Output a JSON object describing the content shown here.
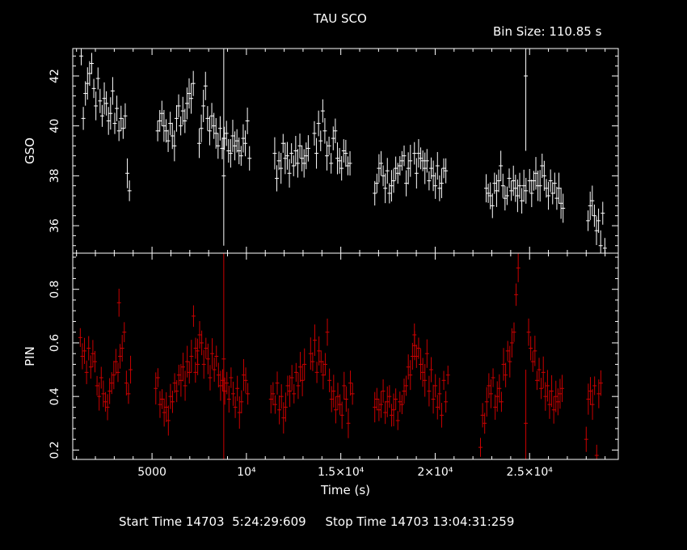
{
  "chart_data": {
    "type": "scatter",
    "title": "TAU SCO",
    "bin_label": "Bin Size: 110.85 s",
    "xlabel": "Time (s)",
    "xlim": [
      800,
      29700
    ],
    "x_ticks": [
      {
        "value": 5000,
        "label": "5000"
      },
      {
        "value": 10000,
        "label": "10⁴"
      },
      {
        "value": 15000,
        "label": "1.5×10⁴"
      },
      {
        "value": 20000,
        "label": "2×10⁴"
      },
      {
        "value": 25000,
        "label": "2.5×10⁴"
      }
    ],
    "footer": "Start Time 14703  5:24:29:609     Stop Time 14703 13:04:31:259",
    "panels": [
      {
        "name": "gso",
        "ylabel": "GSO",
        "ylim": [
          34.9,
          43.1
        ],
        "yticks": [
          36,
          38,
          40,
          42
        ],
        "color": "#ffffff",
        "segments": [
          {
            "x0": 1250,
            "dx": 111,
            "y": [
              42.8,
              40.3,
              41.3,
              41.7,
              42.1,
              42.5,
              41.5,
              40.8,
              41.9,
              41.0,
              40.4,
              41.1,
              40.9,
              40.2,
              40.5,
              41.4,
              40.1,
              40.7,
              39.8,
              40.3,
              39.9,
              40.4,
              38.1,
              37.4
            ]
          },
          {
            "x0": 5300,
            "dx": 111,
            "y": [
              39.8,
              40.2,
              40.5,
              40.0,
              39.8,
              39.4,
              40.1,
              39.6,
              39.2,
              40.3,
              40.8,
              40.0,
              40.6,
              40.2,
              40.9,
              41.3,
              41.1,
              41.7
            ]
          },
          {
            "x0": 7500,
            "dx": 111,
            "y": [
              39.3,
              39.9,
              40.8,
              41.6,
              40.3,
              39.8,
              40.4,
              40.0,
              39.7,
              39.2,
              39.9,
              39.1,
              39.5,
              39.7,
              39.0,
              38.9,
              39.6,
              39.2,
              39.4,
              39.0,
              38.8,
              39.5,
              39.3,
              40.2,
              38.7
            ]
          },
          {
            "x0": 11500,
            "dx": 111,
            "y": [
              38.9,
              37.9,
              38.6,
              38.3,
              39.3,
              38.7,
              38.8,
              38.1,
              38.9,
              38.4,
              39.0,
              38.5,
              39.2,
              38.7,
              38.5,
              38.8,
              39.1
            ]
          },
          {
            "x0": 13600,
            "dx": 111,
            "y": [
              39.7,
              38.9,
              40.1,
              39.4,
              40.6,
              39.8,
              38.8,
              39.2,
              38.5,
              39.5,
              39.8,
              38.7,
              38.6,
              38.3,
              39.0,
              38.9,
              38.4,
              38.5
            ]
          },
          {
            "x0": 16800,
            "dx": 111,
            "y": [
              37.3,
              37.7,
              38.3,
              38.5,
              38.0,
              37.5,
              38.2,
              37.3,
              37.6,
              37.8,
              38.3,
              38.1,
              38.4,
              38.6,
              38.8,
              37.7,
              38.3,
              38.6
            ]
          },
          {
            "x0": 18900,
            "dx": 111,
            "y": [
              38.9,
              38.1,
              38.9,
              38.7,
              38.6,
              38.3,
              38.6,
              37.8,
              38.3,
              38.0,
              37.6,
              38.4,
              37.5,
              37.7,
              38.3,
              38.2
            ]
          },
          {
            "x0": 22700,
            "dx": 111,
            "y": [
              37.5,
              37.3,
              37.2,
              36.8,
              37.7,
              37.4,
              37.8,
              38.4,
              37.6,
              37.1,
              37.2,
              37.9,
              37.4,
              37.8,
              37.5,
              37.2,
              37.6,
              37.0,
              37.6,
              37.4
            ]
          },
          {
            "x0": 25000,
            "dx": 111,
            "y": [
              37.8,
              37.3,
              37.8,
              38.1,
              37.6,
              37.6,
              38.4,
              38.0,
              37.5,
              37.2,
              37.8,
              37.3,
              37.7,
              37.1,
              37.5,
              36.9,
              36.7
            ]
          },
          {
            "x0": 28100,
            "dx": 111,
            "y": [
              36.2,
              36.8,
              37.0,
              36.4,
              35.8,
              36.2,
              35.2,
              36.5,
              35.1
            ]
          }
        ],
        "spikes": [
          {
            "x": 8800,
            "y": 38.0,
            "lo": 35.2,
            "hi": 43.1
          },
          {
            "x": 24800,
            "y": 42.0,
            "lo": 39.0,
            "hi": 43.1
          }
        ]
      },
      {
        "name": "pin",
        "ylabel": "PIN",
        "ylim": [
          0.165,
          0.935
        ],
        "yticks": [
          0.2,
          0.4,
          0.6,
          0.8
        ],
        "color": "#cc0000",
        "segments": [
          {
            "x0": 1200,
            "dx": 111,
            "y": [
              0.62,
              0.55,
              0.57,
              0.49,
              0.58,
              0.51,
              0.56,
              0.53,
              0.44,
              0.4,
              0.47,
              0.41,
              0.38,
              0.36,
              0.42,
              0.45,
              0.48,
              0.53,
              0.49,
              0.55,
              0.58,
              0.64,
              0.45,
              0.41,
              0.5
            ]
          },
          {
            "x0": 3250,
            "dx": 0,
            "y": [
              0.75
            ]
          },
          {
            "x0": 5200,
            "dx": 111,
            "y": [
              0.43,
              0.47,
              0.37,
              0.39,
              0.34,
              0.36,
              0.31,
              0.4,
              0.38,
              0.45,
              0.42,
              0.48,
              0.46,
              0.51,
              0.44,
              0.53,
              0.49,
              0.55,
              0.7,
              0.58,
              0.52
            ]
          },
          {
            "x0": 7300,
            "dx": 111,
            "y": [
              0.49,
              0.57,
              0.63,
              0.6,
              0.52,
              0.58,
              0.54,
              0.47,
              0.56,
              0.5,
              0.55,
              0.48,
              0.44,
              0.46,
              0.42,
              0.45,
              0.39,
              0.47,
              0.41,
              0.36,
              0.43,
              0.34,
              0.38,
              0.48,
              0.46,
              0.41
            ]
          },
          {
            "x0": 11300,
            "dx": 111,
            "y": [
              0.39,
              0.41,
              0.37,
              0.45,
              0.35,
              0.4,
              0.32,
              0.36,
              0.44,
              0.42,
              0.47,
              0.41,
              0.49,
              0.44,
              0.51,
              0.46,
              0.52
            ]
          },
          {
            "x0": 13400,
            "dx": 111,
            "y": [
              0.56,
              0.53,
              0.61,
              0.49,
              0.57,
              0.53,
              0.48,
              0.52,
              0.64,
              0.46,
              0.39,
              0.42,
              0.35,
              0.4,
              0.37,
              0.33,
              0.44,
              0.39,
              0.3,
              0.45,
              0.41
            ]
          },
          {
            "x0": 16800,
            "dx": 111,
            "y": [
              0.36,
              0.39,
              0.35,
              0.37,
              0.42,
              0.34,
              0.38,
              0.4,
              0.33,
              0.35,
              0.39,
              0.31,
              0.38,
              0.37,
              0.42,
              0.44,
              0.51,
              0.48,
              0.55,
              0.59
            ]
          },
          {
            "x0": 18900,
            "dx": 111,
            "y": [
              0.63,
              0.55,
              0.58,
              0.52,
              0.49,
              0.46,
              0.56,
              0.42,
              0.5,
              0.39,
              0.44,
              0.36,
              0.41,
              0.33,
              0.46,
              0.38,
              0.48
            ]
          },
          {
            "x0": 22400,
            "dx": 111,
            "y": [
              0.21,
              0.33,
              0.3,
              0.38,
              0.44,
              0.41,
              0.47,
              0.36,
              0.4,
              0.43,
              0.38,
              0.52,
              0.48,
              0.57,
              0.53,
              0.6,
              0.64,
              0.78,
              0.88
            ]
          },
          {
            "x0": 24950,
            "dx": 111,
            "y": [
              0.64,
              0.58,
              0.53,
              0.57,
              0.46,
              0.5,
              0.43,
              0.49,
              0.4,
              0.44,
              0.37,
              0.42,
              0.35,
              0.4,
              0.38,
              0.41,
              0.43
            ]
          },
          {
            "x0": 28000,
            "dx": 111,
            "y": [
              0.24,
              0.39,
              0.42,
              0.37,
              0.44,
              0.18,
              0.41,
              0.45
            ]
          }
        ],
        "spikes": [
          {
            "x": 8800,
            "y": 0.54,
            "lo": 0.16,
            "hi": 0.935
          },
          {
            "x": 24800,
            "y": 0.3,
            "lo": 0.16,
            "hi": 0.5
          }
        ]
      }
    ]
  }
}
